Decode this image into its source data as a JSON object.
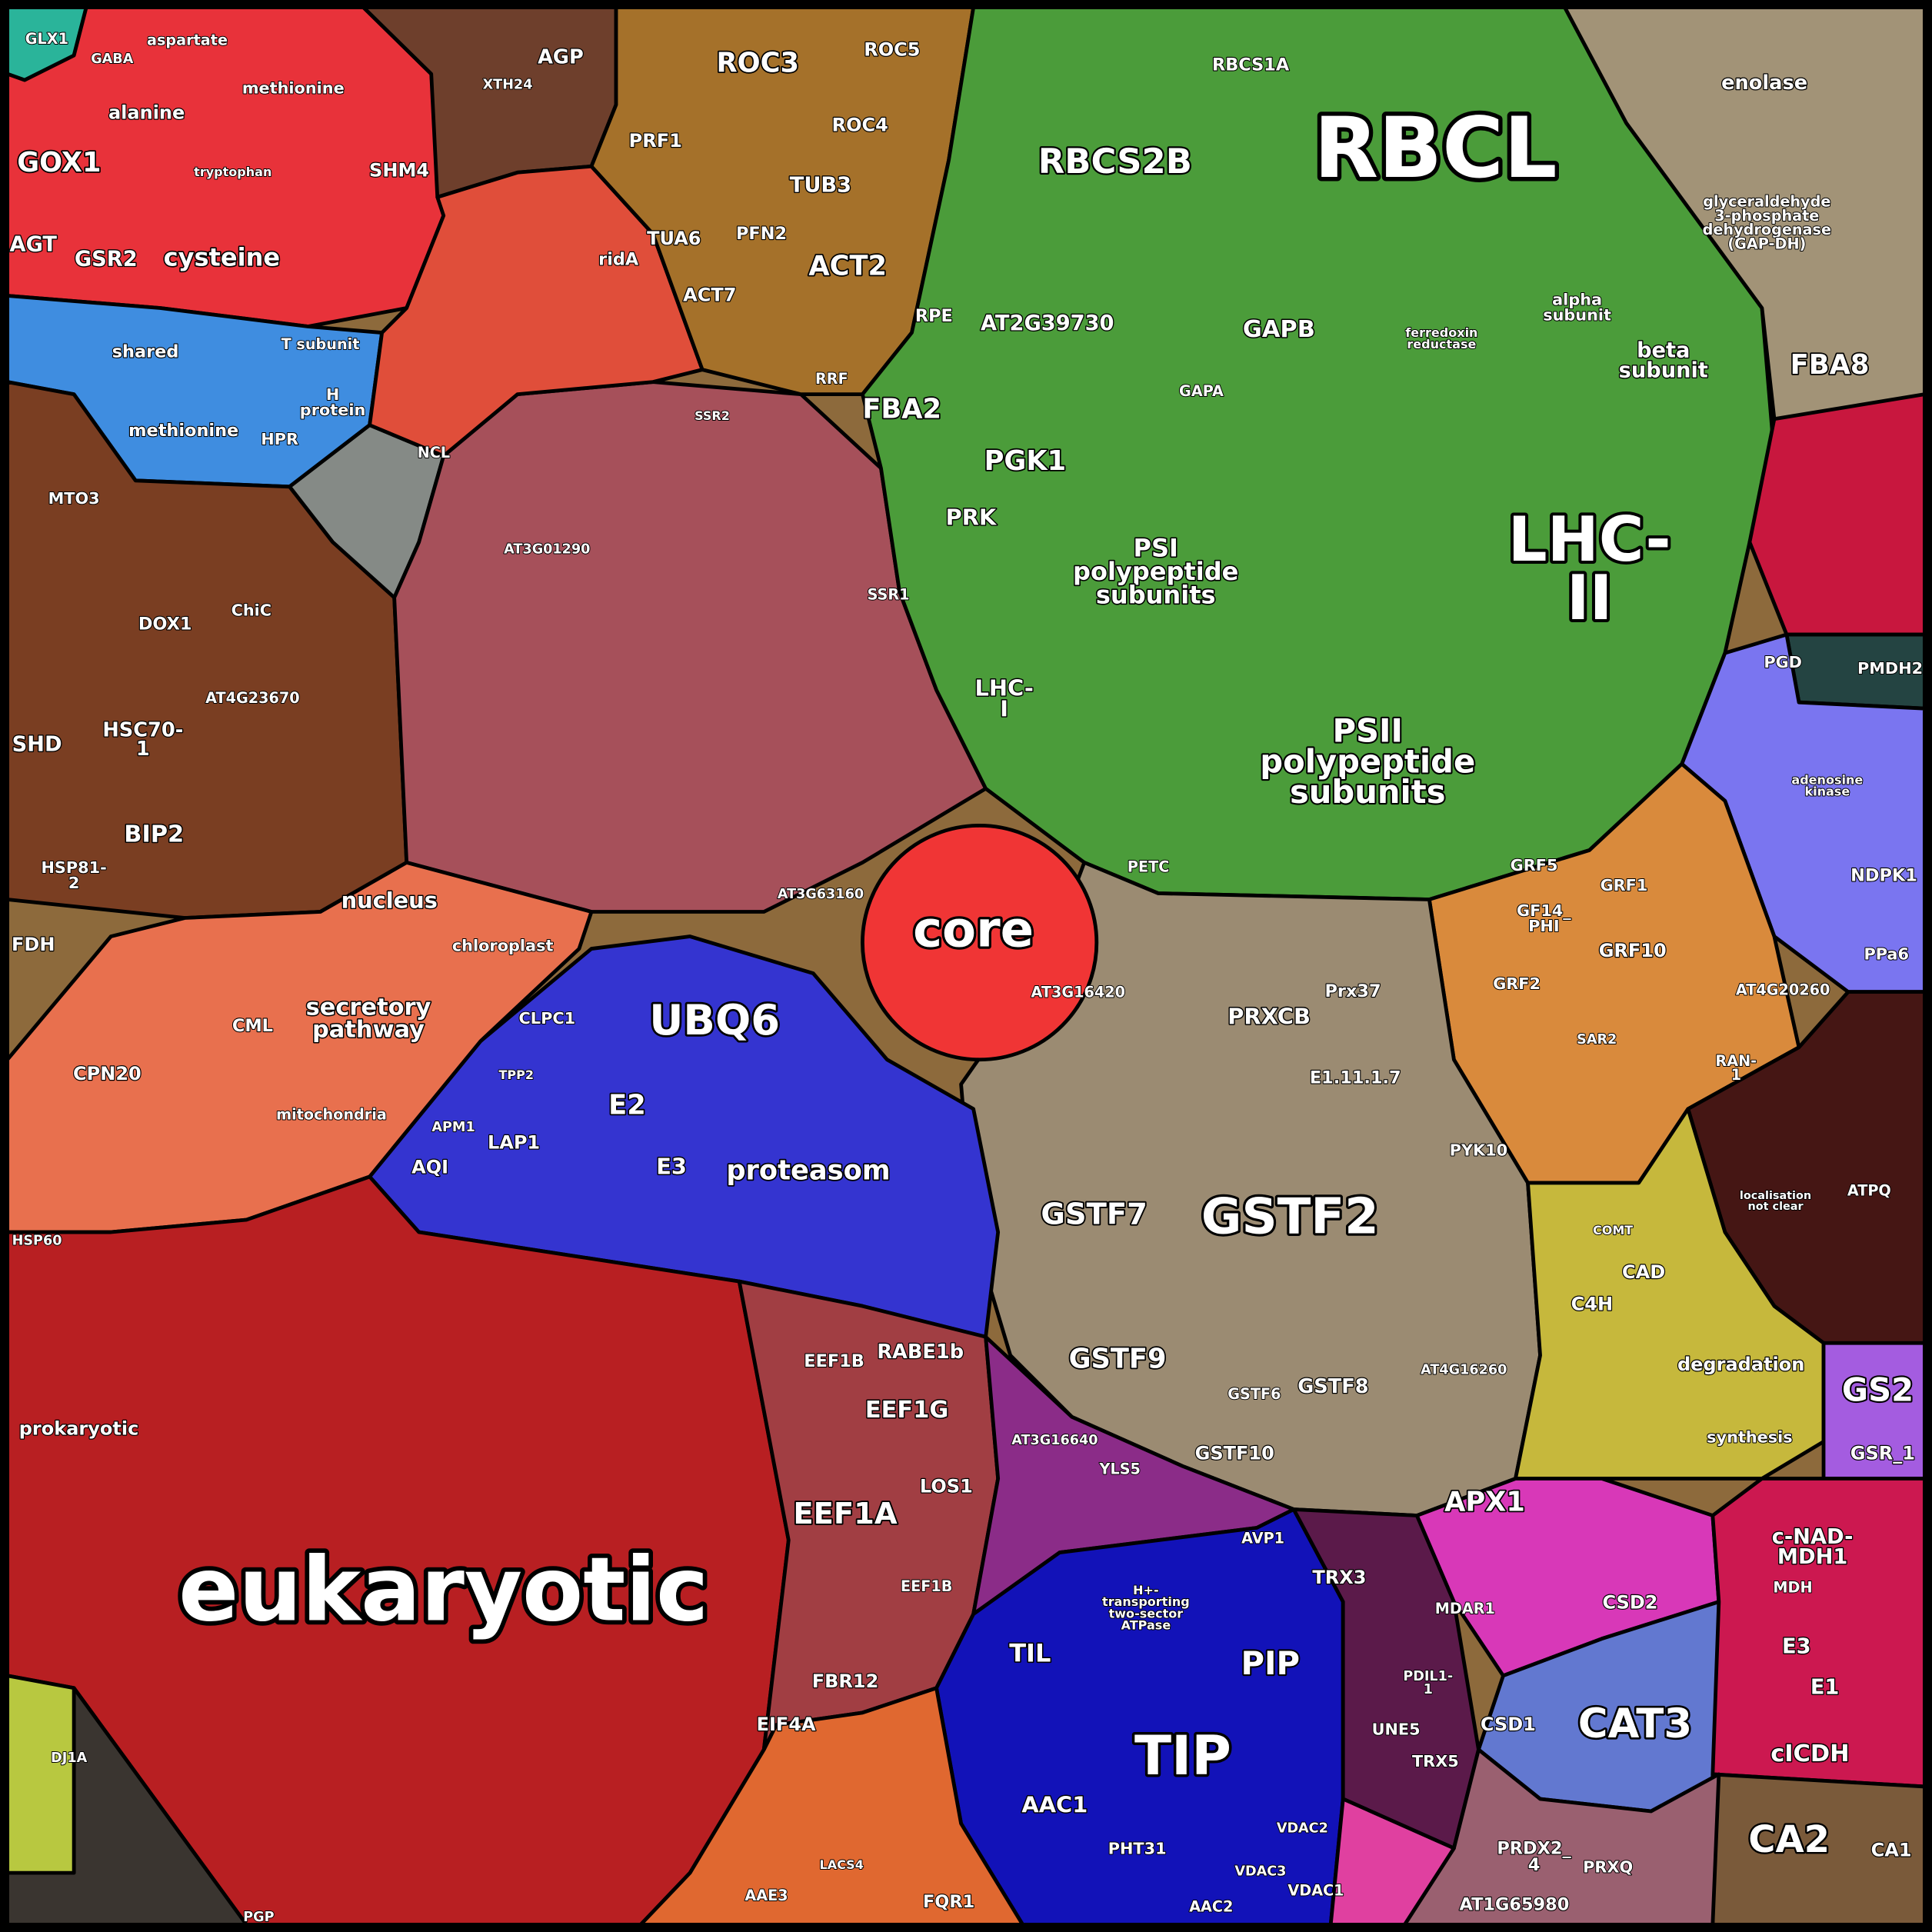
{
  "labels": [
    "RBCL",
    "eukaryotic",
    "LHC-\nII",
    "PSII\npolypeptide\nsubunits",
    "PSI\npolypeptide\nsubunits",
    "RBCS2B",
    "RBCS1A",
    "AT2G39730",
    "GAPB",
    "GAPA",
    "FBA2",
    "PGK1",
    "PRK",
    "RPE",
    "LHC-\nI",
    "alpha\nsubunit",
    "beta\nsubunit",
    "ferredoxin\nreductase",
    "PETC",
    "GSTF2",
    "GSTF7",
    "GSTF9",
    "GSTF8",
    "GSTF10",
    "GSTF6",
    "PRXCB",
    "Prx37",
    "E1.11.1.7",
    "AT3G16420",
    "PYK10",
    "AT4G16260",
    "core",
    "UBQ6",
    "proteasom",
    "E2",
    "E3",
    "CLPC1",
    "LAP1",
    "AQI",
    "APM1",
    "TPP2",
    "EEF1A",
    "EEF1G",
    "RABE1b",
    "EEF1B",
    "LOS1",
    "EEF1B",
    "FBR12",
    "EIF4A",
    "nucleus",
    "chloroplast",
    "secretory\npathway",
    "mitochondria",
    "CML",
    "CPN20",
    "HSP60",
    "prokaryotic",
    "FDH",
    "GOX1",
    "AGT",
    "GSR2",
    "cysteine",
    "alanine",
    "methionine",
    "aspartate",
    "GABA",
    "SHM4",
    "tryptophan",
    "shared",
    "methionine",
    "T subunit",
    "H\nprotein",
    "HPR",
    "GLX1",
    "MTO3",
    "DOX1",
    "ChiC",
    "AT4G23670",
    "HSC70-\n1",
    "SHD",
    "BIP2",
    "HSP81-\n2",
    "AT3G01290",
    "AT3G63160",
    "SSR1",
    "SSR2",
    "NCL",
    "ridA",
    "AGP",
    "XTH24",
    "ROC3",
    "ROC5",
    "ROC4",
    "TUB3",
    "PRF1",
    "PFN2",
    "TUA6",
    "ACT2",
    "ACT7",
    "RRF",
    "enolase",
    "glyceraldehyde\n3-phosphate\ndehydrogenase\n(GAP-DH)",
    "FBA8",
    "PGD",
    "PMDH2",
    "adenosine\nkinase",
    "NDPK1",
    "PPa6",
    "GRF5",
    "GF14_\nPHI",
    "GRF1",
    "GRF10",
    "GRF2",
    "AT4G20260",
    "RAN-\n1",
    "SAR2",
    "ATPQ",
    "localisation\nnot clear",
    "degradation",
    "synthesis",
    "CAD",
    "C4H",
    "COMT",
    "GS2",
    "GSR_1",
    "APX1",
    "CAT3",
    "CSD2",
    "CSD1",
    "TRX3",
    "PDIL1-\n1",
    "UNE5",
    "TRX5",
    "MDAR1",
    "c-NAD-\nMDH1",
    "MDH",
    "E3",
    "E1",
    "cICDH",
    "CA2",
    "CA1",
    "PRDX2_\n4",
    "AT1G65980",
    "PRXQ",
    "TIP",
    "PIP",
    "TIL",
    "AAC1",
    "PHT31",
    "VDAC1",
    "VDAC3",
    "VDAC2",
    "AAC2",
    "H+-\ntransporting\ntwo-sector\nATPase",
    "AT3G16640",
    "YLS5",
    "AVP1",
    "FQR1",
    "AAE3",
    "LACS4",
    "DJ1A",
    "PGP"
  ]
}
